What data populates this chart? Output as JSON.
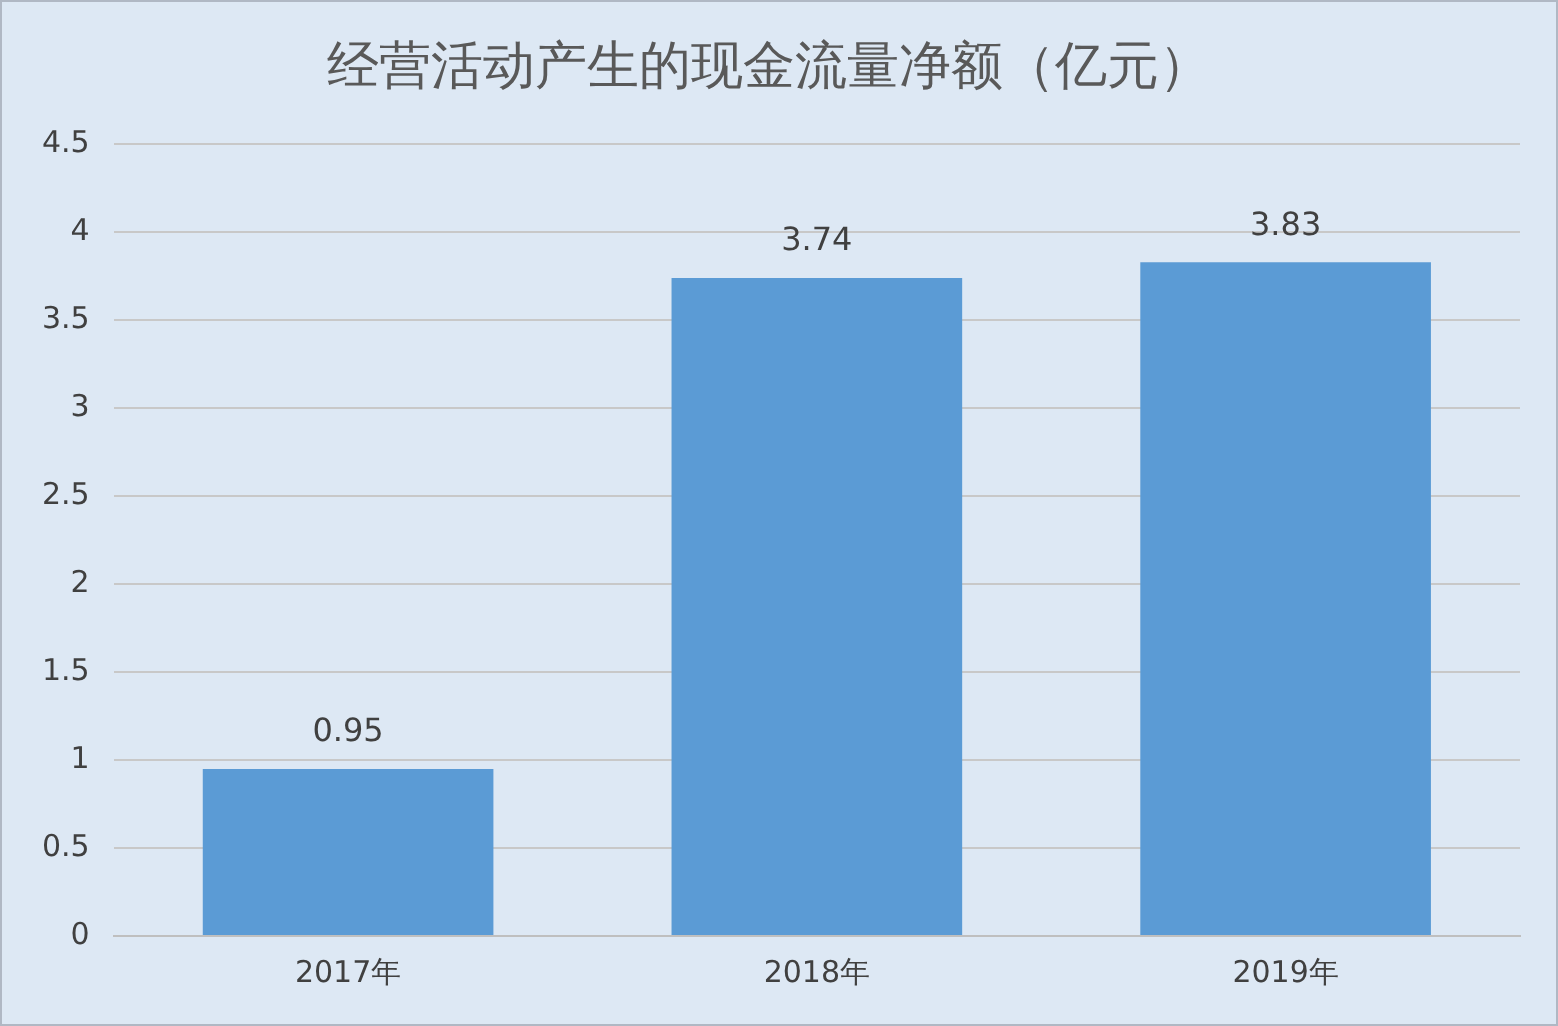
{
  "chart_data": {
    "type": "bar",
    "title": "经营活动产生的现金流量净额（亿元）",
    "categories": [
      "2017年",
      "2018年",
      "2019年"
    ],
    "series": [
      {
        "color": "#5b9bd5",
        "values": [
          0.95,
          3.74,
          3.83
        ]
      }
    ],
    "ylim": [
      0,
      4.5
    ],
    "yticks": [
      0,
      0.5,
      1,
      1.5,
      2,
      2.5,
      3,
      3.5,
      4,
      4.5
    ],
    "grid": "y",
    "data_labels": true,
    "legend": false
  }
}
